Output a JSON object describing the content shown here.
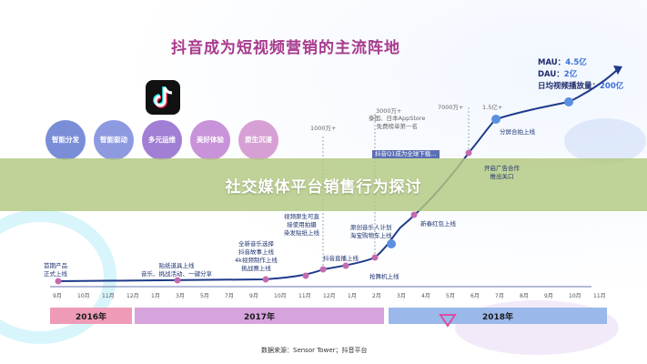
{
  "title": "抖音成为短视频营销的主流阵地",
  "banner": "社交媒体平台销售行为探讨",
  "features": [
    {
      "label": "智能分发",
      "color": "#7a8ed8"
    },
    {
      "label": "智能驱动",
      "color": "#8e9ae0"
    },
    {
      "label": "多元运维",
      "color": "#a17fd4"
    },
    {
      "label": "美好体验",
      "color": "#c893d8"
    },
    {
      "label": "原生沉浸",
      "color": "#d7a0d4"
    }
  ],
  "stats": [
    {
      "label": "MAU：",
      "value": "4.5亿"
    },
    {
      "label": "DAU：",
      "value": "2亿"
    },
    {
      "label": "日均视频播放量：",
      "value": "200亿"
    }
  ],
  "user_labels": [
    "1000万+",
    "3000万+",
    "7000万+",
    "1.5亿+"
  ],
  "notes": {
    "n3000": "泰国、日本AppStore\n免费榜单第一名",
    "n_partial": "抖音Q1成为全球下载…",
    "n_ad": "开启广告合作\n推出关口",
    "n_share": "分屏合拍上线"
  },
  "events": [
    {
      "text": "首期产品\n正式上线"
    },
    {
      "text": "贴纸道具上线\n音乐、挑战活动、一键分享"
    },
    {
      "text": "全新音乐选择\n抖音故事上线\n4k视频制作上线\n挑战赛上线"
    },
    {
      "text": "视频原生可直\n接使用拍摄\n染发贴纸上线"
    },
    {
      "text": "抖音直播上线"
    },
    {
      "text": "原创音乐人计划\n淘宝购物车上线"
    },
    {
      "text": "抢舞机上线"
    },
    {
      "text": "新春红包上线"
    }
  ],
  "months": [
    "9月",
    "10月",
    "11月",
    "12月",
    "1月",
    "3月",
    "5月",
    "7月",
    "9月",
    "10月",
    "11月",
    "12月",
    "1月",
    "2月",
    "3月",
    "4月",
    "5月",
    "6月",
    "7月",
    "8月",
    "9月",
    "10月",
    "11月"
  ],
  "years": [
    "2016年",
    "2017年",
    "2018年"
  ],
  "source": "数据来源：Sensor Tower；抖音平台",
  "colors": {
    "accent": "#3b6fd8",
    "title": "#a83a8c",
    "line": "#1e3a8a",
    "banner": "#b2c880"
  }
}
